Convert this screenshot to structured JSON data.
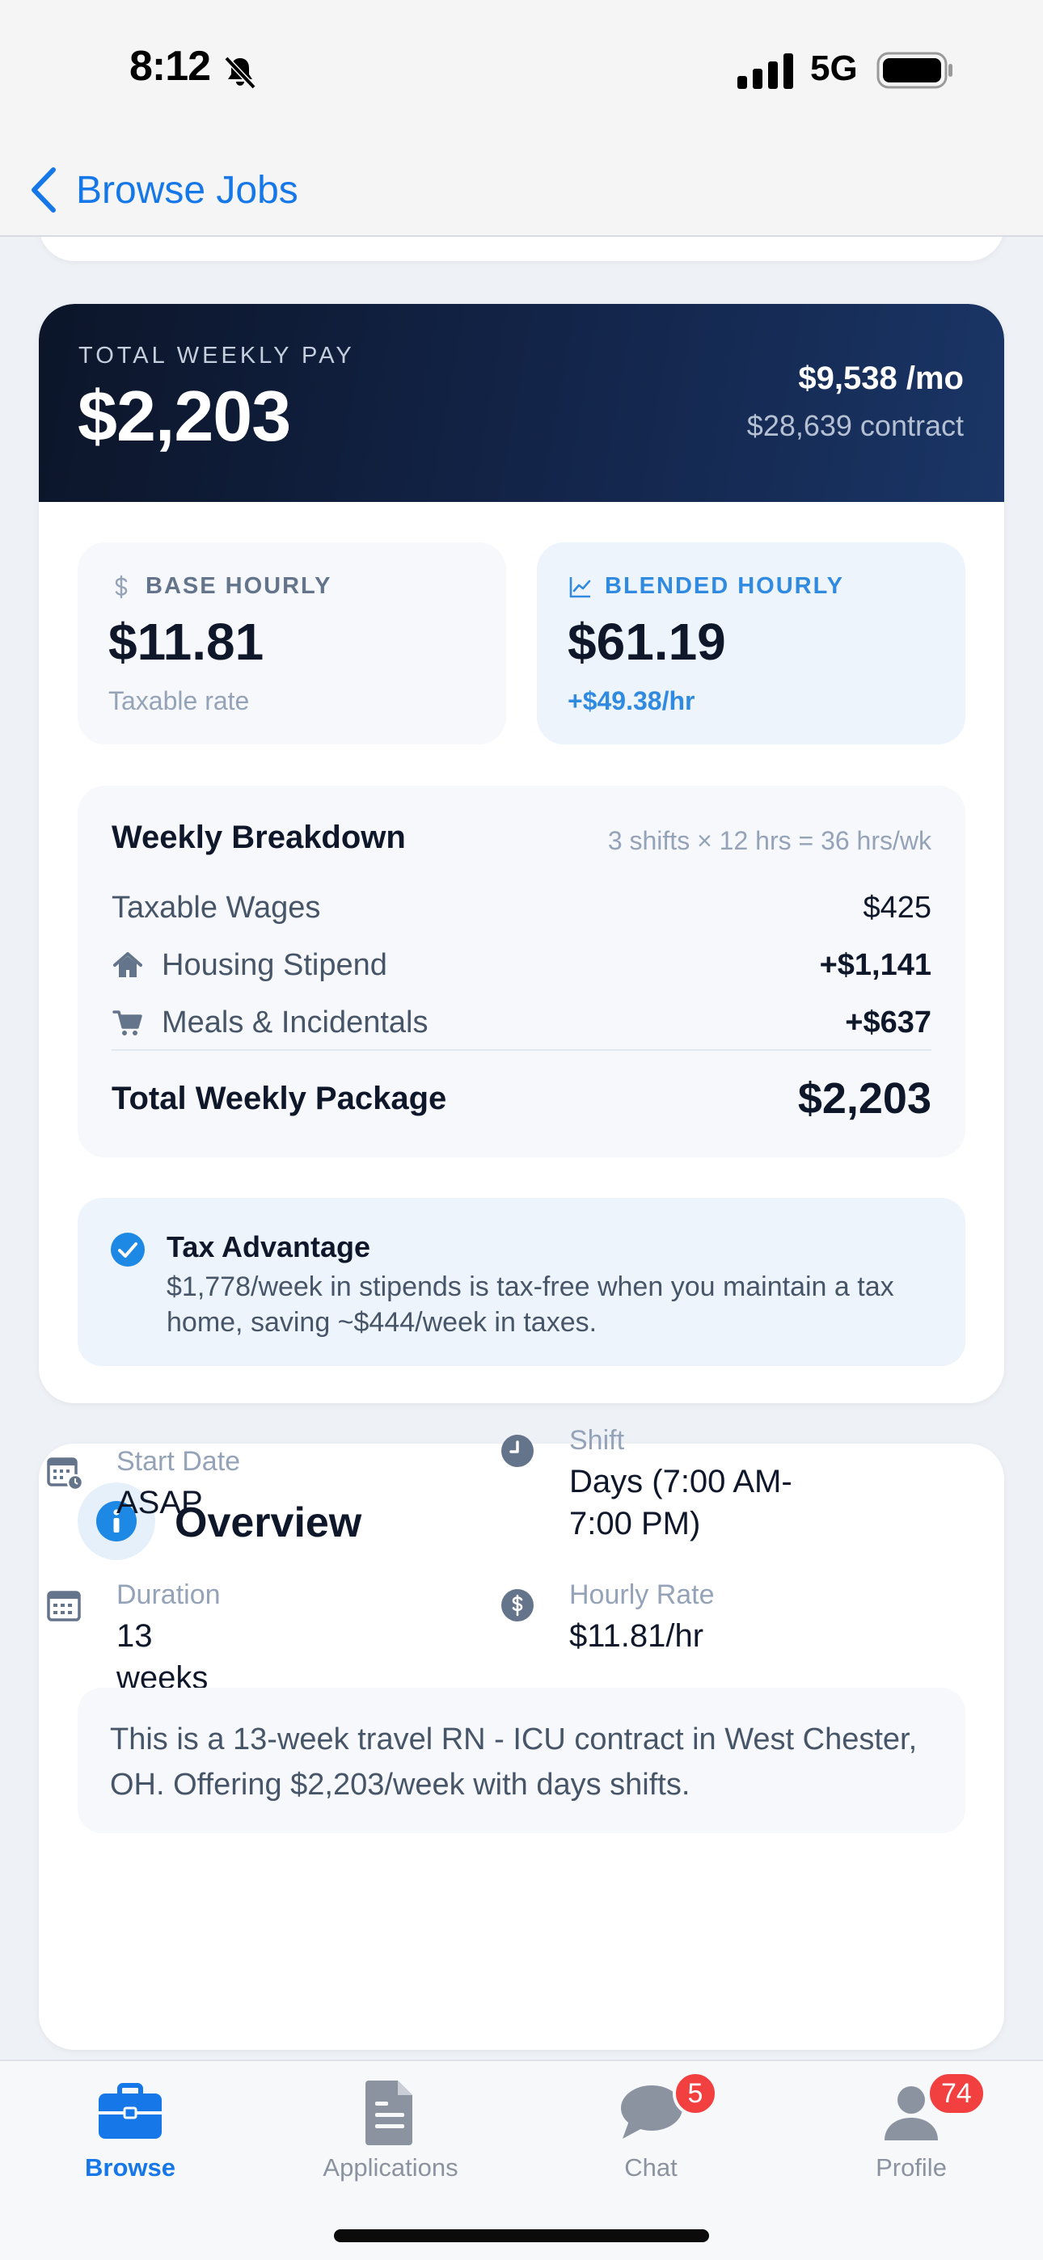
{
  "status_bar": {
    "time": "8:12",
    "network": "5G"
  },
  "nav": {
    "back_label": "Browse Jobs"
  },
  "pay": {
    "eyebrow": "TOTAL WEEKLY PAY",
    "weekly_total": "$2,203",
    "monthly": "$9,538 /mo",
    "contract": "$28,639 contract",
    "base": {
      "label": "BASE HOURLY",
      "value": "$11.81",
      "sub": "Taxable rate"
    },
    "blended": {
      "label": "BLENDED HOURLY",
      "value": "$61.19",
      "sub": "+$49.38/hr"
    }
  },
  "breakdown": {
    "title": "Weekly Breakdown",
    "formula": "3 shifts × 12 hrs = 36 hrs/wk",
    "rows": [
      {
        "label": "Taxable Wages",
        "value": "$425",
        "icon": "none"
      },
      {
        "label": "Housing Stipend",
        "value": "+$1,141",
        "icon": "house-icon"
      },
      {
        "label": "Meals & Incidentals",
        "value": "+$637",
        "icon": "cart-icon"
      }
    ],
    "total_label": "Total Weekly Package",
    "total_value": "$2,203"
  },
  "tax": {
    "title": "Tax Advantage",
    "body": "$1,778/week in stipends is tax-free when you maintain a tax home, saving ~$444/week in taxes."
  },
  "overview": {
    "title": "Overview",
    "start_label": "Start Date",
    "start_value": "ASAP",
    "shift_label": "Shift",
    "shift_value": "Days (7:00 AM-7:00 PM)",
    "duration_label": "Duration",
    "duration_value": "13 weeks",
    "hourly_label": "Hourly Rate",
    "hourly_value": "$11.81/hr",
    "description": "This is a 13-week travel RN - ICU contract in West Chester, OH. Offering $2,203/week with days shifts."
  },
  "tabs": [
    {
      "label": "Browse",
      "active": true
    },
    {
      "label": "Applications",
      "active": false
    },
    {
      "label": "Chat",
      "active": false,
      "badge": "5"
    },
    {
      "label": "Profile",
      "active": false,
      "badge": "74"
    }
  ],
  "colors": {
    "accent": "#1677e8",
    "hero_dark": "#0c1529",
    "badge_red": "#f24040",
    "blended_blue": "#2f8ae0"
  }
}
